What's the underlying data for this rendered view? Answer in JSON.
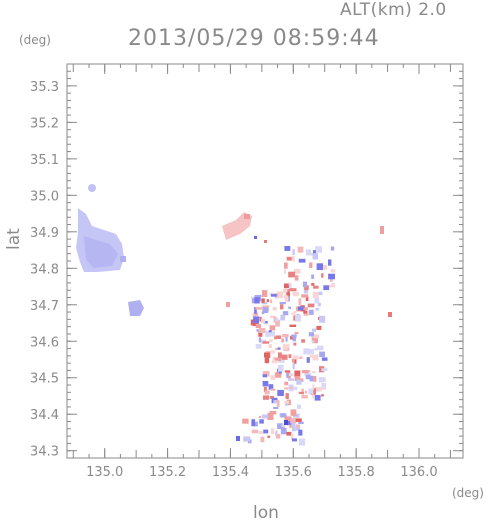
{
  "header": {
    "altitude_label": "ALT(km) 2.0",
    "timestamp": "2013/05/29 08:59:44"
  },
  "axes": {
    "y_unit": "(deg)",
    "x_unit": "(deg)",
    "y_label": "lat",
    "x_label": "lon"
  },
  "chart_data": {
    "type": "heatmap",
    "title": "2013/05/29 08:59:44",
    "xlabel": "lon",
    "ylabel": "lat",
    "xlim": [
      134.88,
      136.14
    ],
    "ylim": [
      34.28,
      35.36
    ],
    "x_ticks": [
      "135.0",
      "135.2",
      "135.4",
      "135.6",
      "135.8",
      "136.0"
    ],
    "y_ticks": [
      "34.3",
      "34.4",
      "34.5",
      "34.6",
      "34.7",
      "34.8",
      "34.9",
      "35.0",
      "35.1",
      "35.2",
      "35.3"
    ],
    "grid": false,
    "colors": {
      "negative": "#9a9af0",
      "positive": "#f09a9a",
      "axis": "#8a8a8a"
    }
  }
}
